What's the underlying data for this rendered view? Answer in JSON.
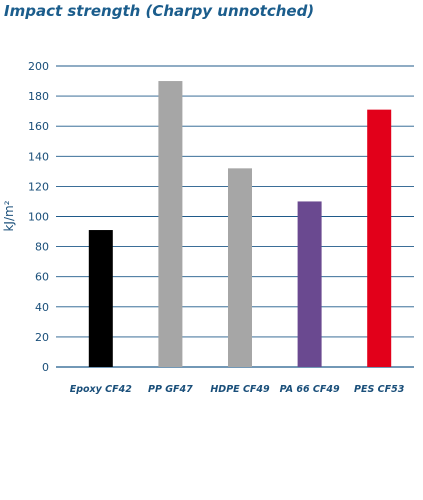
{
  "chart_data": {
    "type": "bar",
    "title": "Impact strength (Charpy unnotched)",
    "ylabel": "kJ/m²",
    "xlabel": "",
    "ylim": [
      0,
      200
    ],
    "yticks": [
      0,
      20,
      40,
      60,
      80,
      100,
      120,
      140,
      160,
      180,
      200
    ],
    "grid": true,
    "categories": [
      "Epoxy CF42",
      "PP GF47",
      "HDPE CF49",
      "PA 66 CF49",
      "PES CF53"
    ],
    "values": [
      91,
      190,
      132,
      110,
      171
    ],
    "colors": [
      "#000000",
      "#a6a6a6",
      "#a6a6a6",
      "#6a4990",
      "#e2001a"
    ],
    "gridline_color": "#1f5a8a"
  }
}
